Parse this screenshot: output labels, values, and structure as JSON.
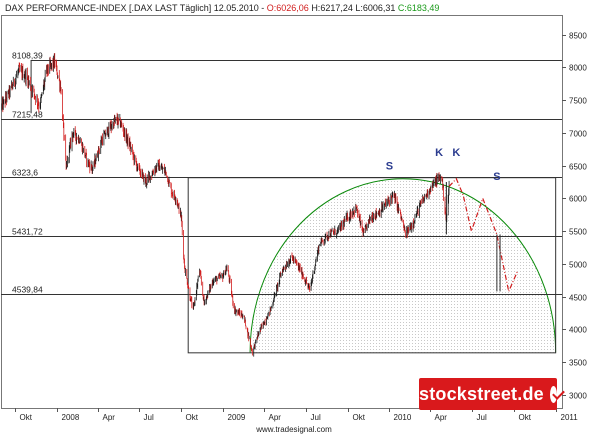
{
  "header": {
    "instrument": "DAX PERFORMANCE-INDEX [.DAX LAST Täglich] 12.05.2010 -",
    "open": "O:6026,06",
    "high_low": "H:6217,24 L:6006,31",
    "close": "C:6183,49"
  },
  "colors": {
    "up": "#1a1a1a",
    "down": "#d11d1d",
    "arc": "#0a8a0a",
    "projection": "#d11d1d",
    "stipple": "#c8c8c8",
    "badge": "#d9191c",
    "annotation": "#2b3c8f"
  },
  "chart_data": {
    "type": "candlestick",
    "y_axis": {
      "side": "right",
      "ylim": [
        2800,
        8800
      ],
      "ticks": [
        3000,
        3500,
        4000,
        4500,
        5000,
        5500,
        6000,
        6500,
        7000,
        7500,
        8000,
        8500
      ]
    },
    "x_axis": {
      "range": [
        "2007-09-01",
        "2011-01-15"
      ],
      "ticks": [
        {
          "label": "Okt",
          "date": "2007-10-01"
        },
        {
          "label": "2008",
          "date": "2008-01-01"
        },
        {
          "label": "Apr",
          "date": "2008-04-01"
        },
        {
          "label": "Jul",
          "date": "2008-07-01"
        },
        {
          "label": "Okt",
          "date": "2008-10-01"
        },
        {
          "label": "2009",
          "date": "2009-01-01"
        },
        {
          "label": "Apr",
          "date": "2009-04-01"
        },
        {
          "label": "Jul",
          "date": "2009-07-01"
        },
        {
          "label": "Okt",
          "date": "2009-10-01"
        },
        {
          "label": "2010",
          "date": "2010-01-01"
        },
        {
          "label": "Apr",
          "date": "2010-04-01"
        },
        {
          "label": "Jul",
          "date": "2010-07-01"
        },
        {
          "label": "Okt",
          "date": "2010-10-01"
        },
        {
          "label": "2011",
          "date": "2011-01-01"
        }
      ]
    },
    "levels": [
      {
        "label": "8108,39",
        "value": 8108.39
      },
      {
        "label": "7215,48",
        "value": 7215.48
      },
      {
        "label": "6323,6",
        "value": 6323.6
      },
      {
        "label": "5431,72",
        "value": 5431.72
      },
      {
        "label": "4539,84",
        "value": 4539.84
      }
    ],
    "box": {
      "from": "2008-10-15",
      "to": "2010-12-31",
      "low": 3650,
      "high": 6323.6
    },
    "arc": {
      "from": "2009-03-01",
      "peak": "2010-05-01",
      "to": "2011-01-01",
      "start": 3650,
      "top": 6300,
      "end": 3650
    },
    "price_path": [
      [
        "2007-09-03",
        7400
      ],
      [
        "2007-09-25",
        7700
      ],
      [
        "2007-10-10",
        7950
      ],
      [
        "2007-10-25",
        7880
      ],
      [
        "2007-11-10",
        7650
      ],
      [
        "2007-11-25",
        7400
      ],
      [
        "2007-12-10",
        7950
      ],
      [
        "2007-12-28",
        8080
      ],
      [
        "2008-01-10",
        7700
      ],
      [
        "2008-01-22",
        6450
      ],
      [
        "2008-02-05",
        7000
      ],
      [
        "2008-02-20",
        6900
      ],
      [
        "2008-03-10",
        6550
      ],
      [
        "2008-03-20",
        6450
      ],
      [
        "2008-04-10",
        6900
      ],
      [
        "2008-05-10",
        7200
      ],
      [
        "2008-05-20",
        7150
      ],
      [
        "2008-06-10",
        6800
      ],
      [
        "2008-06-25",
        6500
      ],
      [
        "2008-07-15",
        6250
      ],
      [
        "2008-08-10",
        6500
      ],
      [
        "2008-08-28",
        6400
      ],
      [
        "2008-09-10",
        6100
      ],
      [
        "2008-09-20",
        6000
      ],
      [
        "2008-10-01",
        5700
      ],
      [
        "2008-10-08",
        4950
      ],
      [
        "2008-10-20",
        4500
      ],
      [
        "2008-10-27",
        4300
      ],
      [
        "2008-11-10",
        4900
      ],
      [
        "2008-11-20",
        4400
      ],
      [
        "2008-12-10",
        4750
      ],
      [
        "2008-12-31",
        4810
      ],
      [
        "2009-01-10",
        4950
      ],
      [
        "2009-01-25",
        4300
      ],
      [
        "2009-02-15",
        4200
      ],
      [
        "2009-03-06",
        3650
      ],
      [
        "2009-03-20",
        3950
      ],
      [
        "2009-04-15",
        4300
      ],
      [
        "2009-05-10",
        4900
      ],
      [
        "2009-06-01",
        5100
      ],
      [
        "2009-06-20",
        4900
      ],
      [
        "2009-07-10",
        4600
      ],
      [
        "2009-07-31",
        5300
      ],
      [
        "2009-08-20",
        5450
      ],
      [
        "2009-09-10",
        5500
      ],
      [
        "2009-09-30",
        5700
      ],
      [
        "2009-10-20",
        5850
      ],
      [
        "2009-11-05",
        5450
      ],
      [
        "2009-11-20",
        5700
      ],
      [
        "2009-12-10",
        5800
      ],
      [
        "2010-01-10",
        6050
      ],
      [
        "2010-01-25",
        5750
      ],
      [
        "2010-02-05",
        5450
      ],
      [
        "2010-02-20",
        5600
      ],
      [
        "2010-03-10",
        5900
      ],
      [
        "2010-03-31",
        6150
      ],
      [
        "2010-04-15",
        6280
      ],
      [
        "2010-04-26",
        6330
      ],
      [
        "2010-05-06",
        5650
      ],
      [
        "2010-05-12",
        6183
      ]
    ],
    "projection_path": [
      [
        "2010-05-12",
        6183
      ],
      [
        "2010-05-28",
        6300
      ],
      [
        "2010-06-12",
        6050
      ],
      [
        "2010-06-30",
        5500
      ],
      [
        "2010-07-25",
        6000
      ],
      [
        "2010-08-25",
        5450
      ],
      [
        "2010-09-20",
        4580
      ],
      [
        "2010-10-10",
        4900
      ]
    ],
    "spike": {
      "date": "2010-05-06",
      "low": 5450
    },
    "gap_band": {
      "from": "2010-08-25",
      "to": "2010-09-01",
      "low": 4580,
      "high": 5450
    },
    "annotations": [
      {
        "text": "S",
        "date": "2010-01-01",
        "value": 6440
      },
      {
        "text": "K",
        "date": "2010-04-20",
        "value": 6650
      },
      {
        "text": "K",
        "date": "2010-05-28",
        "value": 6650
      },
      {
        "text": "S",
        "date": "2010-08-25",
        "value": 6280
      }
    ]
  },
  "footer": {
    "watermark": "www.tradesignal.com",
    "badge": "stockstreet.de"
  }
}
